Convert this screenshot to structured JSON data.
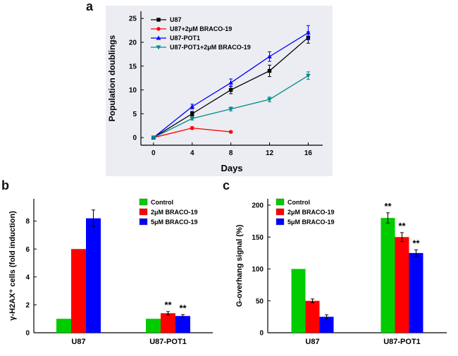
{
  "figure": {
    "background": "#ffffff",
    "panel_a_background": "#ecedf2"
  },
  "chart_data": [
    {
      "id": "a",
      "panel_label": "a",
      "type": "line",
      "title": "",
      "xlabel": "Days",
      "ylabel": "Population doublings",
      "xlim": [
        -1.3,
        17.5
      ],
      "ylim": [
        -1.6,
        26.5
      ],
      "x_ticks": [
        0,
        4,
        8,
        12,
        16
      ],
      "y_ticks": [
        0,
        5,
        10,
        15,
        20,
        25
      ],
      "grid": false,
      "legend_position": "top-left",
      "background": "#ecedf2",
      "series": [
        {
          "name": "U87",
          "color": "#000000",
          "marker": "square",
          "x": [
            0,
            4,
            8,
            12,
            16
          ],
          "y": [
            0,
            5,
            10,
            14,
            21
          ],
          "err": [
            0.3,
            0.5,
            0.8,
            1.2,
            1.2
          ]
        },
        {
          "name": "U87+2μM BRACO-19",
          "color": "#ff0000",
          "marker": "circle",
          "x": [
            0,
            4,
            8
          ],
          "y": [
            0,
            2,
            1.2
          ],
          "err": [
            0.2,
            0.3,
            0.2
          ]
        },
        {
          "name": "U87-POT1",
          "color": "#0000ff",
          "marker": "triangle-up",
          "x": [
            0,
            4,
            8,
            12,
            16
          ],
          "y": [
            0,
            6.5,
            11.5,
            17,
            22
          ],
          "err": [
            0.3,
            0.5,
            0.8,
            1.0,
            1.5
          ]
        },
        {
          "name": "U87-POT1+2μM BRACO-19",
          "color": "#008b8b",
          "marker": "triangle-down",
          "x": [
            0,
            4,
            8,
            12,
            16
          ],
          "y": [
            0,
            4,
            6,
            8,
            13
          ],
          "err": [
            0.2,
            0.3,
            0.4,
            0.5,
            0.8
          ]
        }
      ]
    },
    {
      "id": "b",
      "panel_label": "b",
      "type": "bar",
      "title": "",
      "xlabel": "",
      "ylabel": "γ-H2AX⁺ cells (fold induction)",
      "categories": [
        "U87",
        "U87-POT1"
      ],
      "ylim": [
        0,
        9.6
      ],
      "y_ticks": [
        0,
        2,
        4,
        6,
        8
      ],
      "grid": false,
      "legend_position": "top-center",
      "series": [
        {
          "name": "Control",
          "color": "#00cc00",
          "values": [
            1,
            1
          ],
          "err": [
            0,
            0
          ]
        },
        {
          "name": "2μM BRACO-19",
          "color": "#ff0000",
          "values": [
            6,
            1.4
          ],
          "err": [
            0,
            0.12
          ]
        },
        {
          "name": "5μM BRACO-19",
          "color": "#0000ff",
          "values": [
            8.2,
            1.2
          ],
          "err": [
            0.6,
            0.1
          ]
        }
      ],
      "annotations": [
        {
          "category_index": 1,
          "series_index": 1,
          "text": "**"
        },
        {
          "category_index": 1,
          "series_index": 2,
          "text": "**"
        }
      ]
    },
    {
      "id": "c",
      "panel_label": "c",
      "type": "bar",
      "title": "",
      "xlabel": "",
      "ylabel": "G-overhang signal (%)",
      "categories": [
        "U87",
        "U87-POT1"
      ],
      "ylim": [
        0,
        210
      ],
      "y_ticks": [
        0,
        50,
        100,
        150,
        200
      ],
      "grid": false,
      "legend_position": "top-left",
      "series": [
        {
          "name": "Control",
          "color": "#00cc00",
          "values": [
            100,
            180
          ],
          "err": [
            0,
            8
          ]
        },
        {
          "name": "2μM BRACO-19",
          "color": "#ff0000",
          "values": [
            50,
            150
          ],
          "err": [
            3,
            7
          ]
        },
        {
          "name": "5μM BRACO-19",
          "color": "#0000ff",
          "values": [
            25,
            125
          ],
          "err": [
            3,
            5
          ]
        }
      ],
      "annotations": [
        {
          "category_index": 1,
          "series_index": 0,
          "text": "**"
        },
        {
          "category_index": 1,
          "series_index": 1,
          "text": "**"
        },
        {
          "category_index": 1,
          "series_index": 2,
          "text": "**"
        }
      ]
    }
  ]
}
